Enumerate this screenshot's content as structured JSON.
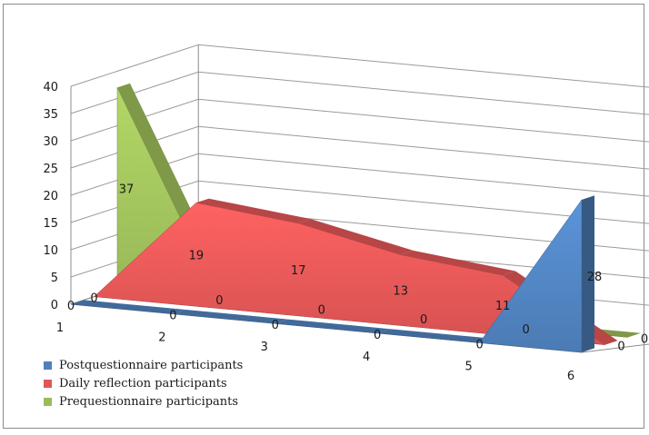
{
  "chart_data": {
    "type": "area",
    "x": [
      1,
      2,
      3,
      4,
      5,
      6
    ],
    "ylim": [
      0,
      40
    ],
    "yticks": [
      0,
      5,
      10,
      15,
      20,
      25,
      30,
      35,
      40
    ],
    "grid": true,
    "legend_position": "bottom-left",
    "series": [
      {
        "name": "Postquestionnaire participants",
        "values": [
          0,
          0,
          0,
          0,
          0,
          28
        ],
        "labels": [
          "0",
          "0",
          "0",
          "0",
          "0",
          "28"
        ],
        "color": "#4f81bd"
      },
      {
        "name": "Daily reflection participants",
        "values": [
          0,
          19,
          17,
          13,
          11,
          0
        ],
        "labels": [
          "0",
          "19",
          "17",
          "13",
          "11",
          "0"
        ],
        "color": "#e05555"
      },
      {
        "name": "Prequestionnaire participants",
        "values": [
          37,
          0,
          0,
          0,
          0,
          0
        ],
        "labels": [
          "37",
          "0",
          "0",
          "0",
          "0",
          "0"
        ],
        "color": "#9bbb59"
      }
    ]
  }
}
